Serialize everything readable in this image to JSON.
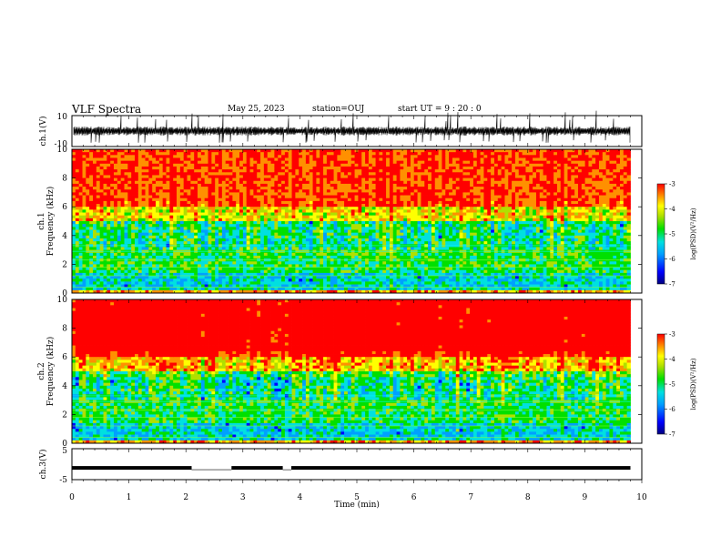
{
  "header": {
    "title": "VLF Spectra",
    "date": "May 25, 2023",
    "station": "station=OUJ",
    "start": "start UT = 9 : 20 : 0"
  },
  "colors": {
    "colormap": [
      "#000080",
      "#0000ff",
      "#00a0ff",
      "#00e0e0",
      "#00e000",
      "#b0e000",
      "#ffff00",
      "#ff9000",
      "#ff0000"
    ],
    "waveform": "#000000"
  },
  "chart_data": [
    {
      "type": "line",
      "name": "ch1-waveform",
      "ylabel": "ch.1(V)",
      "ylim": [
        -10,
        10
      ],
      "yticks": [
        "10",
        "-10"
      ],
      "xlim": [
        0,
        10
      ],
      "baseline": 0
    },
    {
      "type": "heatmap",
      "name": "ch1-spectrogram",
      "ylabel": "ch.1\nFrequency (kHz)",
      "ylim": [
        0,
        10
      ],
      "yticks": [
        "0",
        "2",
        "4",
        "6",
        "8",
        "10"
      ],
      "xlim": [
        0,
        9.8
      ],
      "colorbar": {
        "label": "log(PSD)(V²/Hz)",
        "range": [
          -7,
          -3
        ],
        "ticks": [
          "-3",
          "-4",
          "-5",
          "-6",
          "-7"
        ]
      }
    },
    {
      "type": "heatmap",
      "name": "ch2-spectrogram",
      "ylabel": "ch.2\nFrequency (kHz)",
      "ylim": [
        0,
        10
      ],
      "yticks": [
        "0",
        "2",
        "4",
        "6",
        "8",
        "10"
      ],
      "xlim": [
        0,
        9.8
      ],
      "colorbar": {
        "label": "log(PSD)(V²/Hz)",
        "range": [
          -7,
          -3
        ],
        "ticks": [
          "-3",
          "-4",
          "-5",
          "-6",
          "-7"
        ]
      }
    },
    {
      "type": "line",
      "name": "ch3-signal",
      "ylabel": "ch.3(V)",
      "ylim": [
        -5,
        5
      ],
      "yticks": [
        "5",
        "-5"
      ],
      "xlabel": "Time (min)",
      "xticks": [
        "0",
        "1",
        "2",
        "3",
        "4",
        "5",
        "6",
        "7",
        "8",
        "9",
        "10"
      ],
      "xlim": [
        0,
        10
      ],
      "level": -1.2,
      "gaps": [
        [
          2.1,
          2.8
        ],
        [
          3.7,
          3.85
        ]
      ]
    }
  ]
}
